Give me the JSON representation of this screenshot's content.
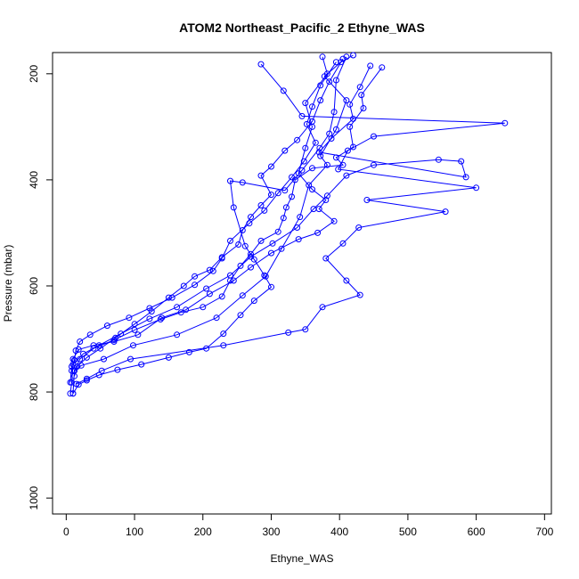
{
  "chart_data": {
    "type": "scatter",
    "title": "ATOM2 Northeast_Pacific_2 Ethyne_WAS",
    "xlabel": "Ethyne_WAS",
    "ylabel": "Pressure (mbar)",
    "xlim": [
      -20,
      710
    ],
    "ylim": [
      1030,
      160
    ],
    "y_reversed": true,
    "x_ticks": [
      0,
      100,
      200,
      300,
      400,
      500,
      600,
      700
    ],
    "y_ticks": [
      200,
      400,
      600,
      800,
      1000
    ],
    "grid": false,
    "color": "#0000ff",
    "series": [
      {
        "values": [
          [
            420,
            165
          ],
          [
            402,
            178
          ],
          [
            378,
            205
          ],
          [
            410,
            250
          ],
          [
            395,
            305
          ],
          [
            372,
            355
          ],
          [
            382,
            372
          ],
          [
            355,
            410
          ],
          [
            342,
            470
          ],
          [
            315,
            530
          ],
          [
            292,
            582
          ],
          [
            258,
            618
          ],
          [
            220,
            660
          ],
          [
            162,
            692
          ],
          [
            98,
            712
          ],
          [
            55,
            738
          ],
          [
            22,
            750
          ],
          [
            12,
            760
          ]
        ]
      },
      {
        "values": [
          [
            285,
            182
          ],
          [
            318,
            232
          ],
          [
            345,
            280
          ],
          [
            642,
            293
          ],
          [
            450,
            318
          ],
          [
            412,
            345
          ],
          [
            398,
            380
          ],
          [
            600,
            415
          ],
          [
            440,
            438
          ],
          [
            555,
            460
          ],
          [
            428,
            490
          ],
          [
            405,
            520
          ],
          [
            380,
            548
          ],
          [
            410,
            590
          ],
          [
            430,
            617
          ],
          [
            375,
            640
          ],
          [
            350,
            682
          ],
          [
            325,
            688
          ],
          [
            230,
            712
          ],
          [
            94,
            738
          ],
          [
            52,
            760
          ],
          [
            30,
            775
          ],
          [
            15,
            785
          ]
        ]
      },
      {
        "values": [
          [
            445,
            185
          ],
          [
            430,
            225
          ],
          [
            415,
            258
          ],
          [
            420,
            285
          ],
          [
            388,
            322
          ],
          [
            370,
            348
          ],
          [
            585,
            395
          ],
          [
            578,
            365
          ],
          [
            545,
            362
          ],
          [
            450,
            372
          ],
          [
            410,
            392
          ],
          [
            382,
            430
          ],
          [
            362,
            455
          ],
          [
            338,
            490
          ],
          [
            302,
            520
          ],
          [
            270,
            545
          ],
          [
            240,
            580
          ],
          [
            205,
            605
          ],
          [
            162,
            640
          ],
          [
            122,
            662
          ],
          [
            80,
            690
          ],
          [
            48,
            712
          ],
          [
            25,
            728
          ],
          [
            10,
            748
          ],
          [
            8,
            782
          ],
          [
            6,
            803
          ]
        ]
      },
      {
        "values": [
          [
            462,
            188
          ],
          [
            432,
            240
          ],
          [
            435,
            265
          ],
          [
            415,
            300
          ],
          [
            420,
            338
          ],
          [
            395,
            358
          ],
          [
            405,
            372
          ],
          [
            360,
            378
          ],
          [
            335,
            400
          ],
          [
            330,
            432
          ],
          [
            322,
            452
          ],
          [
            318,
            472
          ],
          [
            310,
            498
          ],
          [
            285,
            515
          ],
          [
            270,
            540
          ],
          [
            255,
            562
          ],
          [
            240,
            590
          ],
          [
            228,
            620
          ],
          [
            200,
            640
          ],
          [
            168,
            650
          ],
          [
            138,
            663
          ],
          [
            100,
            683
          ],
          [
            70,
            702
          ],
          [
            40,
            718
          ],
          [
            20,
            738
          ],
          [
            12,
            760
          ],
          [
            10,
            803
          ]
        ]
      },
      {
        "values": [
          [
            410,
            168
          ],
          [
            395,
            212
          ],
          [
            392,
            272
          ],
          [
            385,
            313
          ],
          [
            371,
            340
          ],
          [
            345,
            382
          ],
          [
            320,
            420
          ],
          [
            258,
            405
          ],
          [
            240,
            402
          ],
          [
            245,
            452
          ],
          [
            262,
            525
          ],
          [
            275,
            550
          ],
          [
            290,
            580
          ],
          [
            300,
            602
          ],
          [
            275,
            628
          ],
          [
            255,
            655
          ],
          [
            230,
            690
          ],
          [
            205,
            718
          ],
          [
            180,
            725
          ],
          [
            150,
            735
          ],
          [
            110,
            748
          ],
          [
            75,
            758
          ],
          [
            48,
            768
          ],
          [
            30,
            778
          ],
          [
            18,
            786
          ],
          [
            10,
            803
          ]
        ]
      },
      {
        "values": [
          [
            375,
            168
          ],
          [
            382,
            200
          ],
          [
            350,
            255
          ],
          [
            360,
            300
          ],
          [
            350,
            340
          ],
          [
            340,
            388
          ],
          [
            360,
            418
          ],
          [
            380,
            438
          ],
          [
            370,
            455
          ],
          [
            392,
            478
          ],
          [
            368,
            500
          ],
          [
            340,
            512
          ],
          [
            300,
            538
          ],
          [
            270,
            565
          ],
          [
            245,
            590
          ],
          [
            210,
            615
          ],
          [
            175,
            645
          ],
          [
            140,
            660
          ],
          [
            105,
            692
          ],
          [
            70,
            705
          ],
          [
            40,
            712
          ],
          [
            18,
            720
          ],
          [
            10,
            738
          ],
          [
            8,
            752
          ],
          [
            6,
            782
          ]
        ]
      },
      {
        "values": [
          [
            395,
            178
          ],
          [
            372,
            222
          ],
          [
            360,
            262
          ],
          [
            352,
            295
          ],
          [
            365,
            330
          ],
          [
            348,
            365
          ],
          [
            330,
            395
          ],
          [
            310,
            425
          ],
          [
            290,
            458
          ],
          [
            268,
            482
          ],
          [
            240,
            515
          ],
          [
            228,
            548
          ],
          [
            215,
            572
          ],
          [
            188,
            598
          ],
          [
            155,
            622
          ],
          [
            122,
            642
          ],
          [
            92,
            660
          ],
          [
            60,
            675
          ],
          [
            35,
            692
          ],
          [
            20,
            705
          ],
          [
            14,
            722
          ],
          [
            12,
            740
          ],
          [
            8,
            760
          ]
        ]
      },
      {
        "values": [
          [
            405,
            172
          ],
          [
            385,
            215
          ],
          [
            372,
            250
          ],
          [
            360,
            290
          ],
          [
            338,
            325
          ],
          [
            320,
            345
          ],
          [
            300,
            375
          ],
          [
            285,
            392
          ],
          [
            300,
            428
          ],
          [
            285,
            448
          ],
          [
            270,
            470
          ],
          [
            258,
            495
          ],
          [
            252,
            522
          ],
          [
            228,
            546
          ],
          [
            210,
            570
          ],
          [
            188,
            582
          ],
          [
            172,
            600
          ],
          [
            150,
            622
          ],
          [
            125,
            648
          ],
          [
            100,
            672
          ],
          [
            72,
            698
          ],
          [
            50,
            718
          ],
          [
            30,
            735
          ],
          [
            16,
            752
          ],
          [
            12,
            770
          ]
        ]
      }
    ]
  }
}
